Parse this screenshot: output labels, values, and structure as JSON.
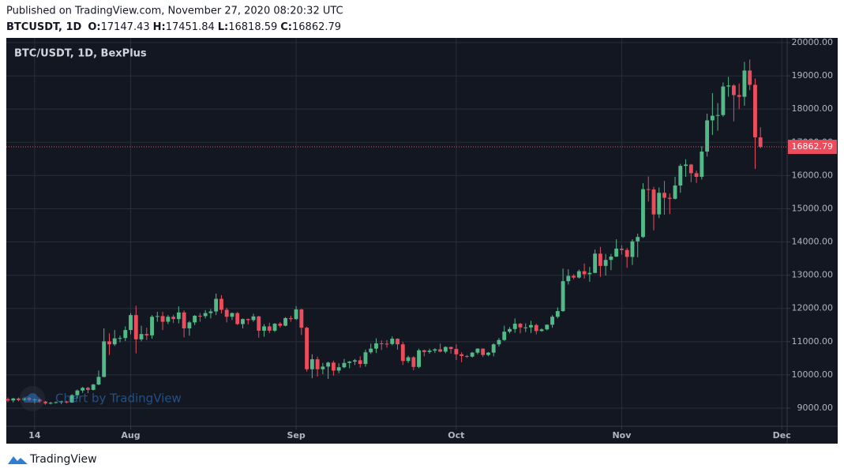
{
  "header": {
    "published": "Published on TradingView.com, November 27, 2020 08:20:32 UTC",
    "symbol": "BTCUSDT, 1D",
    "ohlc_labels": [
      "O:",
      "H:",
      "L:",
      "C:"
    ]
  },
  "footer": {
    "brand": "TradingView"
  },
  "chart_data": {
    "type": "candlestick",
    "title": "BTC/USDT, 1D, BexPlus",
    "watermark": "Chart by TradingView",
    "x": [
      0,
      1,
      2,
      3,
      4,
      5,
      6,
      7,
      8,
      9,
      10,
      11,
      12,
      13,
      14,
      15,
      16,
      17,
      18,
      19,
      20,
      21,
      22,
      23,
      24,
      25,
      26,
      27,
      28,
      29,
      30,
      31,
      32,
      33,
      34,
      35,
      36,
      37,
      38,
      39,
      40,
      41,
      42,
      43,
      44,
      45,
      46,
      47,
      48,
      49,
      50,
      51,
      52,
      53,
      54,
      55,
      56,
      57,
      58,
      59,
      60,
      61,
      62,
      63,
      64,
      65,
      66,
      67,
      68,
      69,
      70,
      71,
      72,
      73,
      74,
      75,
      76,
      77,
      78,
      79,
      80,
      81,
      82,
      83,
      84,
      85,
      86,
      87,
      88,
      89,
      90,
      91,
      92,
      93,
      94,
      95,
      96,
      97,
      98,
      99,
      100,
      101,
      102,
      103,
      104,
      105,
      106,
      107,
      108,
      109,
      110,
      111,
      112,
      113,
      114,
      115,
      116,
      117,
      118,
      119,
      120,
      121,
      122,
      123,
      124,
      125,
      126,
      127,
      128,
      129,
      130,
      131,
      132,
      133,
      134,
      135,
      136,
      137,
      138,
      139,
      140,
      141
    ],
    "open": [
      9270,
      9230,
      9290,
      9240,
      9300,
      9250,
      9260,
      9200,
      9140,
      9160,
      9180,
      9200,
      9170,
      9390,
      9530,
      9610,
      9550,
      9710,
      9940,
      11010,
      10920,
      11100,
      11110,
      11350,
      11800,
      11070,
      11230,
      11190,
      11750,
      11770,
      11600,
      11750,
      11680,
      11880,
      11400,
      11580,
      11780,
      11770,
      11860,
      11910,
      12290,
      11960,
      11750,
      11860,
      11530,
      11680,
      11650,
      11760,
      11330,
      11460,
      11330,
      11540,
      11480,
      11710,
      11680,
      11970,
      11420,
      10170,
      10470,
      10170,
      10250,
      10370,
      10130,
      10230,
      10360,
      10400,
      10440,
      10330,
      10680,
      10790,
      10950,
      10940,
      10930,
      11090,
      10920,
      10420,
      10530,
      10240,
      10740,
      10690,
      10730,
      10770,
      10700,
      10840,
      10780,
      10620,
      10570,
      10550,
      10670,
      10790,
      10600,
      10670,
      10920,
      11050,
      11300,
      11380,
      11540,
      11430,
      11430,
      11500,
      11320,
      11370,
      11510,
      11750,
      11920,
      12820,
      12980,
      12930,
      13120,
      13030,
      13070,
      13650,
      13280,
      13460,
      13560,
      13800,
      13760,
      13550,
      14020,
      14150,
      15590,
      15580,
      14830,
      15480,
      15330,
      15300,
      15700,
      16290,
      16330,
      16070,
      15960,
      16720,
      17660,
      17800,
      17820,
      18680,
      18710,
      18420,
      18370,
      19160,
      18730,
      17147.43
    ],
    "high": [
      9320,
      9310,
      9320,
      9340,
      9340,
      9290,
      9280,
      9220,
      9190,
      9200,
      9220,
      9220,
      9420,
      9560,
      9640,
      9640,
      9730,
      10130,
      11400,
      11250,
      11350,
      11180,
      11460,
      11860,
      12080,
      11480,
      11420,
      11800,
      11900,
      11900,
      11800,
      11810,
      12060,
      11940,
      11620,
      11800,
      11860,
      11950,
      11980,
      12450,
      12400,
      12020,
      11880,
      11890,
      11700,
      11700,
      11840,
      11780,
      11530,
      11570,
      11560,
      11590,
      11740,
      11780,
      12070,
      11990,
      11450,
      10620,
      10550,
      10360,
      10400,
      10430,
      10350,
      10480,
      10420,
      10480,
      10560,
      10760,
      10940,
      11100,
      11040,
      11050,
      11160,
      11100,
      10990,
      10580,
      10560,
      10790,
      10760,
      10790,
      10800,
      10940,
      10860,
      10850,
      10920,
      10680,
      10600,
      10690,
      10800,
      10800,
      10690,
      10950,
      11110,
      11480,
      11440,
      11700,
      11560,
      11550,
      11630,
      11540,
      11400,
      11520,
      11800,
      12030,
      13200,
      13180,
      13030,
      13170,
      13350,
      13250,
      13770,
      13850,
      13640,
      13640,
      14080,
      13900,
      13820,
      14080,
      14250,
      15770,
      15970,
      15660,
      15640,
      15840,
      15460,
      15960,
      16350,
      16490,
      16350,
      16150,
      16880,
      17860,
      18480,
      18180,
      18800,
      18970,
      18750,
      18770,
      19420,
      19490,
      18920,
      17451.84
    ],
    "low": [
      9180,
      9170,
      9200,
      9220,
      9200,
      9120,
      9150,
      9100,
      9110,
      9140,
      9120,
      9140,
      9160,
      9290,
      9460,
      9450,
      9530,
      9690,
      9930,
      10600,
      10870,
      10980,
      11020,
      11220,
      10650,
      11010,
      11050,
      11090,
      11600,
      11350,
      11530,
      11560,
      11550,
      11130,
      11180,
      11500,
      11600,
      11700,
      11700,
      11800,
      11850,
      11580,
      11650,
      11500,
      11400,
      11520,
      11600,
      11120,
      11150,
      11260,
      11290,
      11420,
      11460,
      11600,
      11650,
      11200,
      10100,
      9900,
      9950,
      10020,
      9880,
      9980,
      10050,
      10200,
      10200,
      10300,
      10220,
      10250,
      10630,
      10660,
      10750,
      10820,
      10890,
      10760,
      10300,
      10360,
      10140,
      10200,
      10560,
      10640,
      10660,
      10680,
      10650,
      10640,
      10450,
      10380,
      10510,
      10520,
      10620,
      10540,
      10560,
      10560,
      10850,
      11020,
      11250,
      11270,
      11250,
      11290,
      11260,
      11220,
      11300,
      11340,
      11420,
      11700,
      11900,
      12720,
      12880,
      12900,
      12900,
      12800,
      13060,
      12950,
      12990,
      13150,
      13550,
      13620,
      13220,
      13310,
      13540,
      14120,
      15220,
      14350,
      14720,
      14820,
      14840,
      15280,
      15480,
      15960,
      15800,
      15780,
      15880,
      16570,
      17220,
      17350,
      17770,
      18370,
      17630,
      18000,
      18100,
      18570,
      16200,
      16818.59
    ],
    "close": [
      9230,
      9290,
      9240,
      9300,
      9250,
      9260,
      9200,
      9140,
      9160,
      9180,
      9200,
      9170,
      9390,
      9530,
      9610,
      9550,
      9710,
      9940,
      11010,
      10920,
      11100,
      11110,
      11350,
      11800,
      11070,
      11230,
      11190,
      11750,
      11770,
      11600,
      11750,
      11680,
      11880,
      11400,
      11580,
      11780,
      11770,
      11860,
      11910,
      12290,
      11960,
      11750,
      11860,
      11530,
      11680,
      11650,
      11760,
      11330,
      11460,
      11330,
      11540,
      11480,
      11710,
      11680,
      11970,
      11420,
      10170,
      10470,
      10170,
      10250,
      10370,
      10130,
      10230,
      10360,
      10400,
      10440,
      10330,
      10680,
      10790,
      10950,
      10940,
      10930,
      11090,
      10920,
      10420,
      10530,
      10240,
      10740,
      10690,
      10730,
      10770,
      10700,
      10840,
      10780,
      10620,
      10570,
      10550,
      10670,
      10790,
      10600,
      10670,
      10920,
      11050,
      11300,
      11380,
      11540,
      11430,
      11430,
      11500,
      11320,
      11370,
      11510,
      11750,
      11920,
      12820,
      12980,
      12930,
      13120,
      13030,
      13070,
      13650,
      13280,
      13460,
      13560,
      13800,
      13760,
      13550,
      14020,
      14150,
      15590,
      15580,
      14830,
      15480,
      15330,
      15300,
      15700,
      16290,
      16330,
      16070,
      15960,
      16720,
      17660,
      17800,
      17820,
      18680,
      18710,
      18420,
      18370,
      19160,
      18730,
      17150,
      16862.79
    ],
    "up_color": "#53b987",
    "down_color": "#eb4d5c",
    "last_price_color": "#eb4d5c",
    "xlim": [
      -0.3,
      146
    ],
    "xticks": [
      {
        "value": 5,
        "label": "14"
      },
      {
        "value": 23,
        "label": "Aug"
      },
      {
        "value": 54,
        "label": "Sep"
      },
      {
        "value": 84,
        "label": "Oct"
      },
      {
        "value": 115,
        "label": "Nov"
      },
      {
        "value": 145,
        "label": "Dec"
      }
    ],
    "ylim": [
      8454,
      20142
    ],
    "yticks": [
      {
        "value": 9000,
        "label": "9000.00"
      },
      {
        "value": 10000,
        "label": "10000.00"
      },
      {
        "value": 11000,
        "label": "11000.00"
      },
      {
        "value": 12000,
        "label": "12000.00"
      },
      {
        "value": 13000,
        "label": "13000.00"
      },
      {
        "value": 14000,
        "label": "14000.00"
      },
      {
        "value": 15000,
        "label": "15000.00"
      },
      {
        "value": 16000,
        "label": "16000.00"
      },
      {
        "value": 17000,
        "label": "17000.00"
      },
      {
        "value": 18000,
        "label": "18000.00"
      },
      {
        "value": 19000,
        "label": "19000.00"
      },
      {
        "value": 20000,
        "label": "20000.00"
      }
    ],
    "grid": true
  }
}
